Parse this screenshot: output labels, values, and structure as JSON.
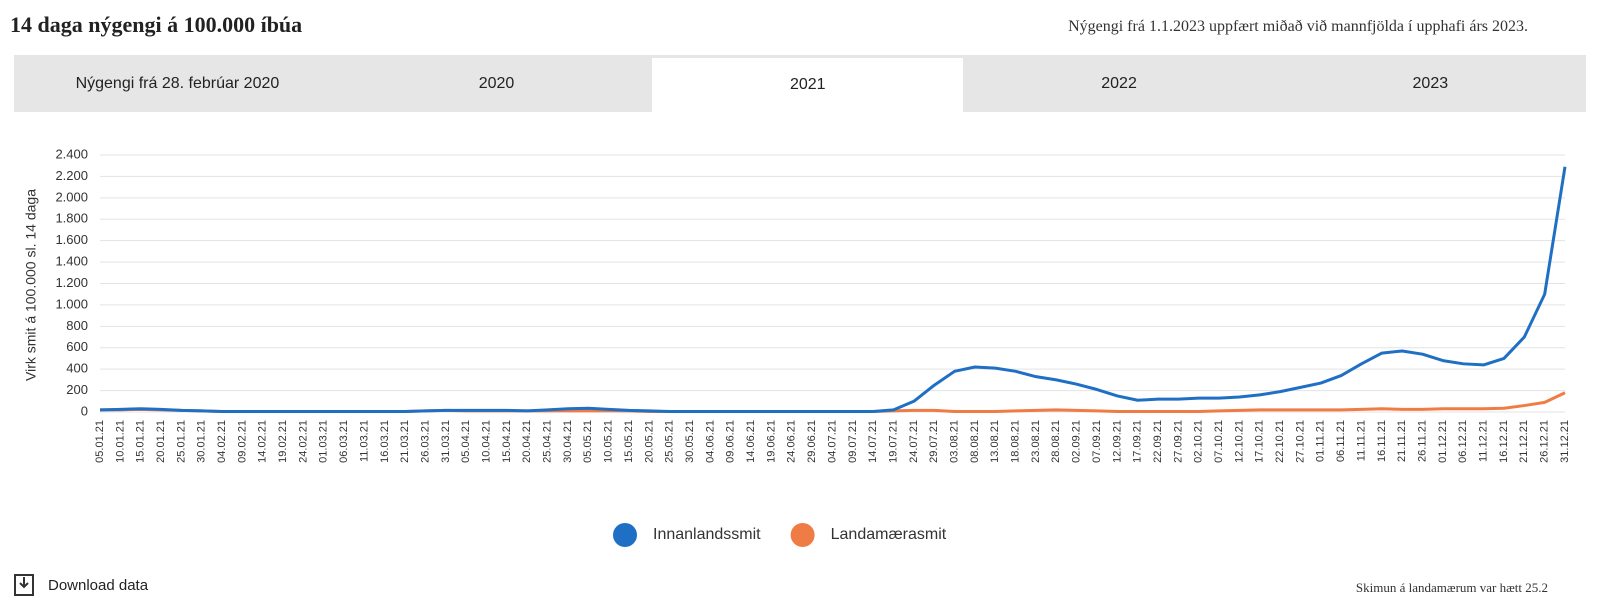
{
  "header": {
    "title": "14 daga nýgengi á 100.000 íbúa",
    "note": "Nýgengi frá 1.1.2023 uppfært miðað við mannfjölda í upphafi árs 2023."
  },
  "tabs": [
    "Nýgengi frá 28. febrúar 2020",
    "2020",
    "2021",
    "2022",
    "2023"
  ],
  "chart_data": {
    "type": "line",
    "y_label": "Virk smit á 100.000 sl. 14 daga",
    "categories": [
      "05.01.21",
      "10.01.21",
      "15.01.21",
      "20.01.21",
      "25.01.21",
      "30.01.21",
      "04.02.21",
      "09.02.21",
      "14.02.21",
      "19.02.21",
      "24.02.21",
      "01.03.21",
      "06.03.21",
      "11.03.21",
      "16.03.21",
      "21.03.21",
      "26.03.21",
      "31.03.21",
      "05.04.21",
      "10.04.21",
      "15.04.21",
      "20.04.21",
      "25.04.21",
      "30.04.21",
      "05.05.21",
      "10.05.21",
      "15.05.21",
      "20.05.21",
      "25.05.21",
      "30.05.21",
      "04.06.21",
      "09.06.21",
      "14.06.21",
      "19.06.21",
      "24.06.21",
      "29.06.21",
      "04.07.21",
      "09.07.21",
      "14.07.21",
      "19.07.21",
      "24.07.21",
      "29.07.21",
      "03.08.21",
      "08.08.21",
      "13.08.21",
      "18.08.21",
      "23.08.21",
      "28.08.21",
      "02.09.21",
      "07.09.21",
      "12.09.21",
      "17.09.21",
      "22.09.21",
      "27.09.21",
      "02.10.21",
      "07.10.21",
      "12.10.21",
      "17.10.21",
      "22.10.21",
      "27.10.21",
      "01.11.21",
      "06.11.21",
      "11.11.21",
      "16.11.21",
      "21.11.21",
      "26.11.21",
      "01.12.21",
      "06.12.21",
      "11.12.21",
      "16.12.21",
      "21.12.21",
      "26.12.21",
      "31.12.21"
    ],
    "series": [
      {
        "name": "Innanlandssmit",
        "color": "#1f6fc5",
        "values": [
          20,
          25,
          30,
          25,
          15,
          10,
          5,
          5,
          5,
          5,
          5,
          5,
          5,
          5,
          5,
          5,
          10,
          15,
          15,
          15,
          15,
          10,
          20,
          30,
          35,
          25,
          15,
          10,
          5,
          5,
          5,
          5,
          5,
          5,
          5,
          5,
          5,
          5,
          5,
          20,
          100,
          250,
          380,
          420,
          410,
          380,
          330,
          300,
          260,
          210,
          150,
          110,
          120,
          120,
          130,
          130,
          140,
          160,
          190,
          230,
          270,
          340,
          450,
          550,
          570,
          540,
          480,
          450,
          440,
          500,
          700,
          1100,
          2290
        ]
      },
      {
        "name": "Landamærasmit",
        "color": "#f07c45",
        "values": [
          20,
          20,
          25,
          20,
          15,
          10,
          5,
          5,
          5,
          5,
          5,
          5,
          5,
          5,
          5,
          5,
          10,
          15,
          10,
          10,
          10,
          10,
          10,
          10,
          10,
          10,
          10,
          5,
          5,
          5,
          5,
          5,
          5,
          5,
          5,
          5,
          5,
          5,
          5,
          10,
          15,
          15,
          5,
          5,
          5,
          10,
          15,
          20,
          15,
          10,
          5,
          5,
          5,
          5,
          5,
          10,
          15,
          20,
          20,
          20,
          20,
          20,
          25,
          30,
          25,
          25,
          30,
          30,
          30,
          35,
          60,
          90,
          180
        ]
      }
    ],
    "ylim": [
      0,
      2400
    ],
    "yticks": [
      0,
      200,
      400,
      600,
      800,
      {
        "value": 1000,
        "label": "1.000"
      },
      {
        "value": 1200,
        "label": "1.200"
      },
      {
        "value": 1400,
        "label": "1.400"
      },
      {
        "value": 1600,
        "label": "1.600"
      },
      {
        "value": 1800,
        "label": "1.800"
      },
      {
        "value": 2000,
        "label": "2.000"
      },
      {
        "value": 2200,
        "label": "2.200"
      },
      {
        "value": 2400,
        "label": "2.400"
      }
    ],
    "grid": true
  },
  "footer": {
    "download": "Download data",
    "note": "Skimun á landamærum var hætt 25.2"
  }
}
